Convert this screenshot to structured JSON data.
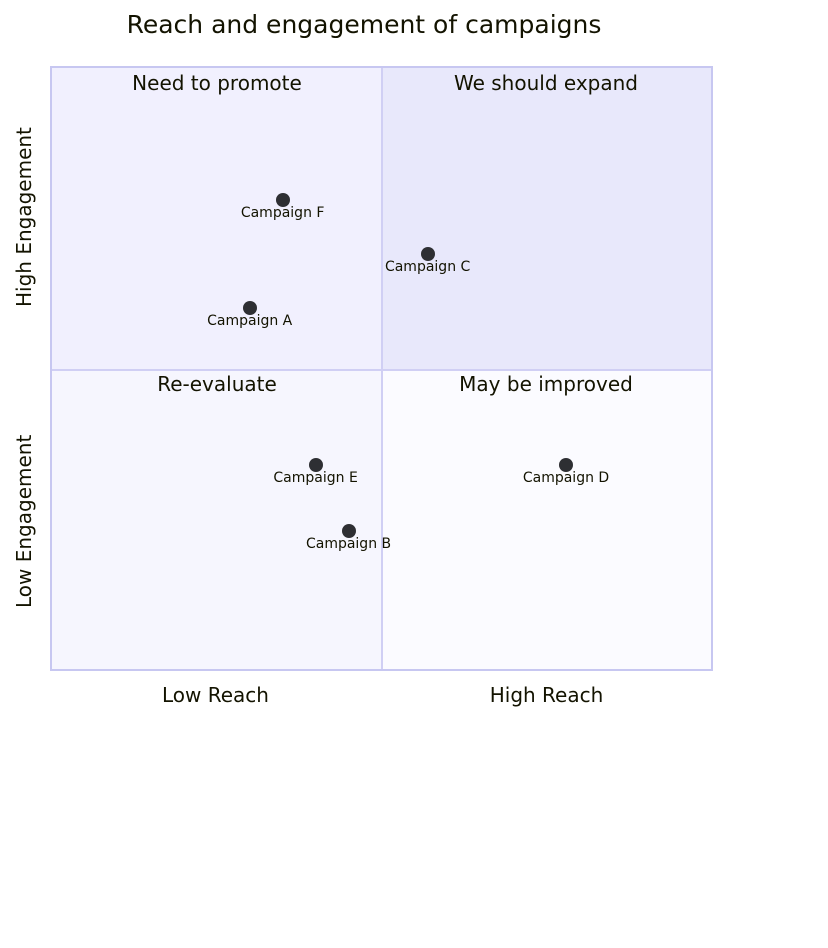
{
  "chart_data": {
    "type": "scatter",
    "subtype": "quadrant",
    "title": "Reach and engagement of campaigns",
    "x_axis": {
      "low_label": "Low Reach",
      "high_label": "High Reach",
      "range": [
        0,
        1
      ]
    },
    "y_axis": {
      "low_label": "Low Engagement",
      "high_label": "High Engagement",
      "range": [
        0,
        1
      ]
    },
    "quadrants": {
      "q1": {
        "label": "We should expand",
        "position": "top-right",
        "fill": "#e8e8fb"
      },
      "q2": {
        "label": "Need to promote",
        "position": "top-left",
        "fill": "#f1f0fe"
      },
      "q3": {
        "label": "Re-evaluate",
        "position": "bottom-left",
        "fill": "#f6f6fe"
      },
      "q4": {
        "label": "May be improved",
        "position": "bottom-right",
        "fill": "#fbfbff"
      }
    },
    "points": [
      {
        "name": "Campaign A",
        "x": 0.3,
        "y": 0.6
      },
      {
        "name": "Campaign B",
        "x": 0.45,
        "y": 0.23
      },
      {
        "name": "Campaign C",
        "x": 0.57,
        "y": 0.69
      },
      {
        "name": "Campaign D",
        "x": 0.78,
        "y": 0.34
      },
      {
        "name": "Campaign E",
        "x": 0.4,
        "y": 0.34
      },
      {
        "name": "Campaign F",
        "x": 0.35,
        "y": 0.78
      }
    ],
    "point_color": "#2e2f33",
    "border_color": "#c7c7f1",
    "legend": "none",
    "grid": false
  }
}
